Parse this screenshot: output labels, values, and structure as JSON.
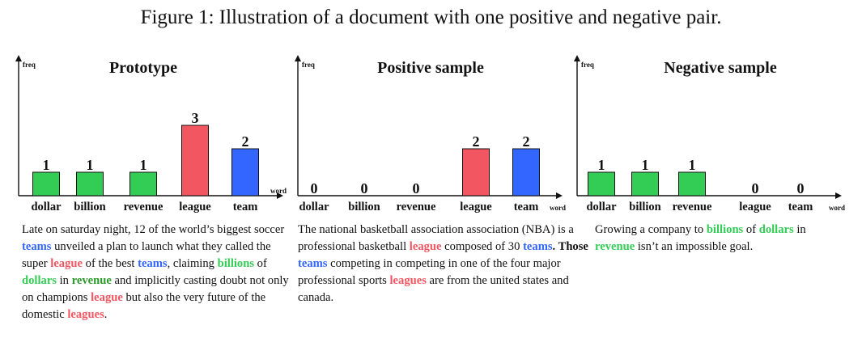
{
  "caption": "Figure 1: Illustration of a document with one positive and negative pair.",
  "colors": {
    "league": "#f25660",
    "team": "#3366ff",
    "finance": "#33cc55"
  },
  "chart_data": [
    {
      "type": "bar",
      "title": "Prototype",
      "ylabel": "freq",
      "xlabel": "word",
      "categories": [
        "dollar",
        "billion",
        "revenue",
        "league",
        "team"
      ],
      "values": [
        1,
        1,
        1,
        3,
        2
      ],
      "bar_colors": [
        "#33cc55",
        "#33cc55",
        "#33cc55",
        "#f25660",
        "#3366ff"
      ]
    },
    {
      "type": "bar",
      "title": "Positive sample",
      "ylabel": "freq",
      "xlabel": "word",
      "categories": [
        "dollar",
        "billion",
        "revenue",
        "league",
        "team"
      ],
      "values": [
        0,
        0,
        0,
        2,
        2
      ],
      "bar_colors": [
        "#33cc55",
        "#33cc55",
        "#33cc55",
        "#f25660",
        "#3366ff"
      ]
    },
    {
      "type": "bar",
      "title": "Negative sample",
      "ylabel": "freq",
      "xlabel": "word",
      "categories": [
        "dollar",
        "billion",
        "revenue",
        "league",
        "team"
      ],
      "values": [
        1,
        1,
        1,
        0,
        0
      ],
      "bar_colors": [
        "#33cc55",
        "#33cc55",
        "#33cc55",
        "#f25660",
        "#3366ff"
      ]
    }
  ],
  "texts": [
    [
      {
        "t": "Late on saturday night, 12 of the world’s biggest soccer "
      },
      {
        "t": "teams",
        "c": "blue"
      },
      {
        "t": " unveiled a plan to launch what they called the super "
      },
      {
        "t": "league",
        "c": "red"
      },
      {
        "t": " of the best "
      },
      {
        "t": "teams",
        "c": "blue"
      },
      {
        "t": ", claiming "
      },
      {
        "t": "billions",
        "c": "green"
      },
      {
        "t": " of "
      },
      {
        "t": "dollars",
        "c": "green"
      },
      {
        "t": " in "
      },
      {
        "t": "revenue",
        "c": "dgreen"
      },
      {
        "t": " and implicitly casting doubt not only on champions "
      },
      {
        "t": "league",
        "c": "red"
      },
      {
        "t": " but also the very future of the domestic "
      },
      {
        "t": "leagues",
        "c": "red"
      },
      {
        "t": "."
      }
    ],
    [
      {
        "t": "The national basketball association association (NBA) is a professional basketball "
      },
      {
        "t": "league",
        "c": "red"
      },
      {
        "t": " composed of 30 "
      },
      {
        "t": "teams",
        "c": "blue"
      },
      {
        "t": ". Those ",
        "b": true
      },
      {
        "t": "teams",
        "c": "blue"
      },
      {
        "t": " competing in competing in one of the four major professional sports "
      },
      {
        "t": "leagues",
        "c": "red"
      },
      {
        "t": " are from the united states and canada."
      }
    ],
    [
      {
        "t": "Growing a company to "
      },
      {
        "t": "billions",
        "c": "green"
      },
      {
        "t": " of "
      },
      {
        "t": "dollars",
        "c": "green"
      },
      {
        "t": " in "
      },
      {
        "t": "revenue",
        "c": "green"
      },
      {
        "t": " isn’t an impossible goal."
      }
    ]
  ]
}
